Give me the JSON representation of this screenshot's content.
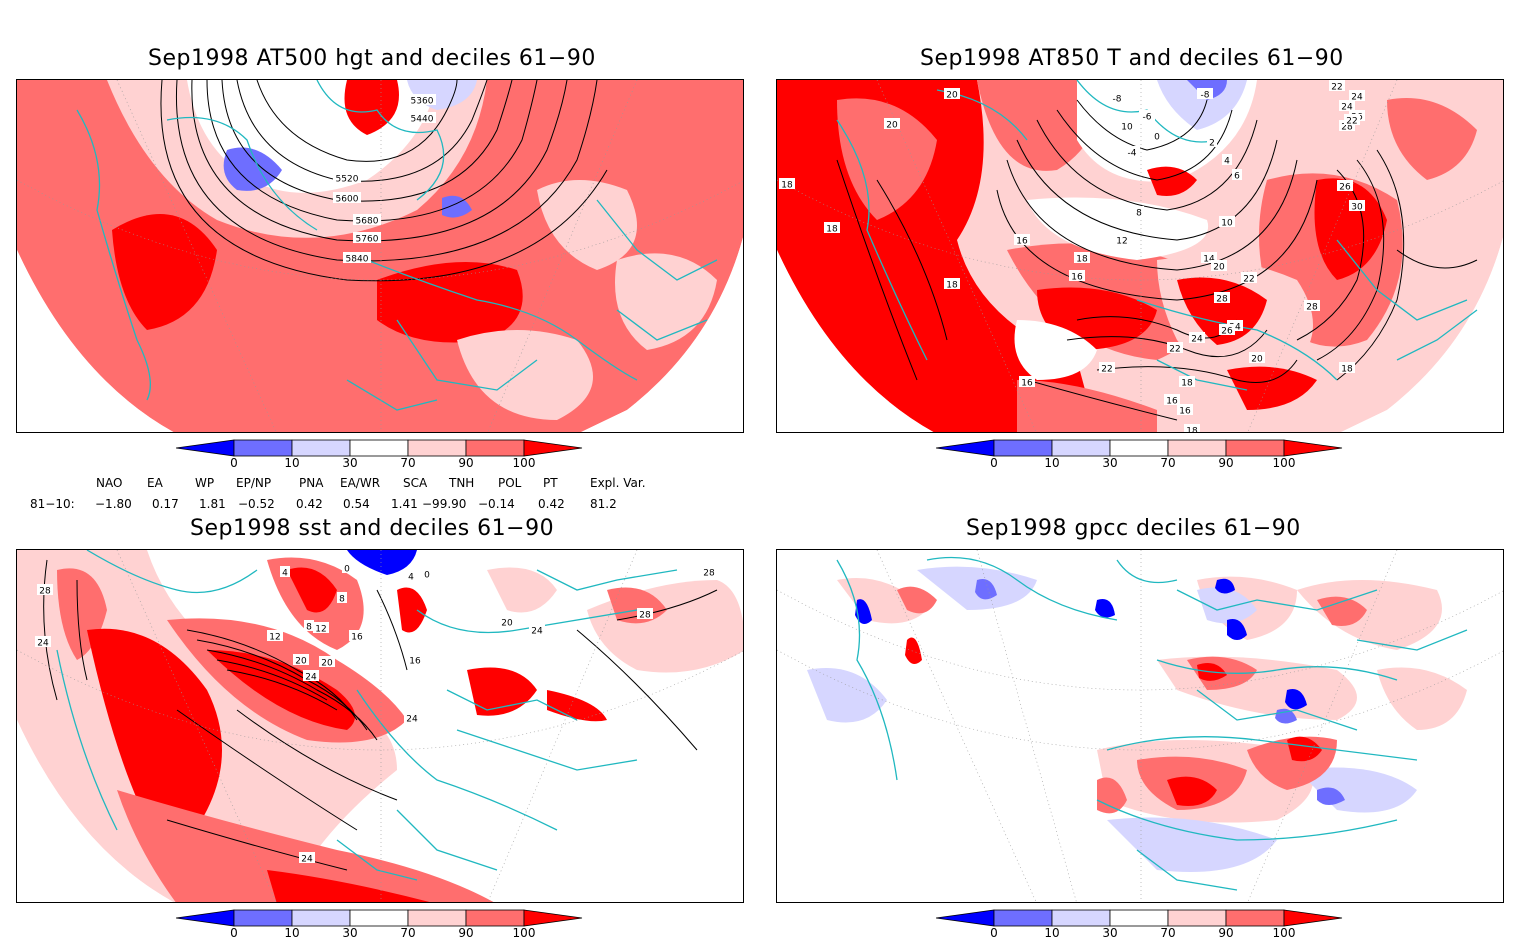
{
  "panels": [
    {
      "title": "Sep1998 AT500 hgt and deciles 61−90",
      "contour_labels": [
        "5360",
        "5440",
        "5520",
        "5600",
        "5680",
        "5760",
        "5840"
      ]
    },
    {
      "title": "Sep1998 AT850 T and deciles 61−90",
      "contour_labels": [
        "20",
        "20",
        "18",
        "18",
        "18",
        "18",
        "16",
        "16",
        "16",
        "18",
        "16",
        "-8",
        "-8",
        "10",
        "-6",
        "0",
        "-4",
        "2",
        "4",
        "6",
        "8",
        "10",
        "12",
        "14",
        "20",
        "22",
        "24",
        "26",
        "28",
        "28",
        "30",
        "22",
        "24",
        "26",
        "28",
        "24",
        "22",
        "20",
        "18",
        "16",
        "22",
        "24",
        "26",
        "22",
        "18"
      ]
    },
    {
      "title": "Sep1998 sst and deciles 61−90",
      "contour_labels": [
        "28",
        "24",
        "0",
        "4",
        "8",
        "12",
        "16",
        "20",
        "24",
        "12",
        "8",
        "4",
        "0",
        "16",
        "20",
        "24",
        "24",
        "28",
        "28",
        "20",
        "24"
      ]
    },
    {
      "title": "Sep1998 gpcc deciles 61−90",
      "contour_labels": []
    }
  ],
  "colorbar": {
    "ticks": [
      "0",
      "10",
      "30",
      "70",
      "90",
      "100"
    ],
    "colors": [
      "#0000ff",
      "#6e6eff",
      "#d6d6ff",
      "#ffffff",
      "#ffd2d2",
      "#ff6e6e",
      "#ff0000"
    ]
  },
  "indices": {
    "headers": [
      "NAO",
      "EA",
      "WP",
      "EP/NP",
      "PNA",
      "EA/WR",
      "SCA",
      "TNH",
      "POL",
      "PT",
      "Expl. Var."
    ],
    "row_label": "81−10:",
    "values": [
      "−1.80",
      "0.17",
      "1.81",
      "−0.52",
      "0.42",
      "0.54",
      "1.41",
      "−99.90",
      "−0.14",
      "0.42",
      "81.2"
    ]
  },
  "colors": {
    "coast": "#20b8c0",
    "red_strong": "#ff0000",
    "red_mid": "#ff6e6e",
    "red_light": "#ffd2d2",
    "blue_strong": "#0000ff",
    "blue_mid": "#6e6eff",
    "blue_light": "#d6d6ff"
  }
}
